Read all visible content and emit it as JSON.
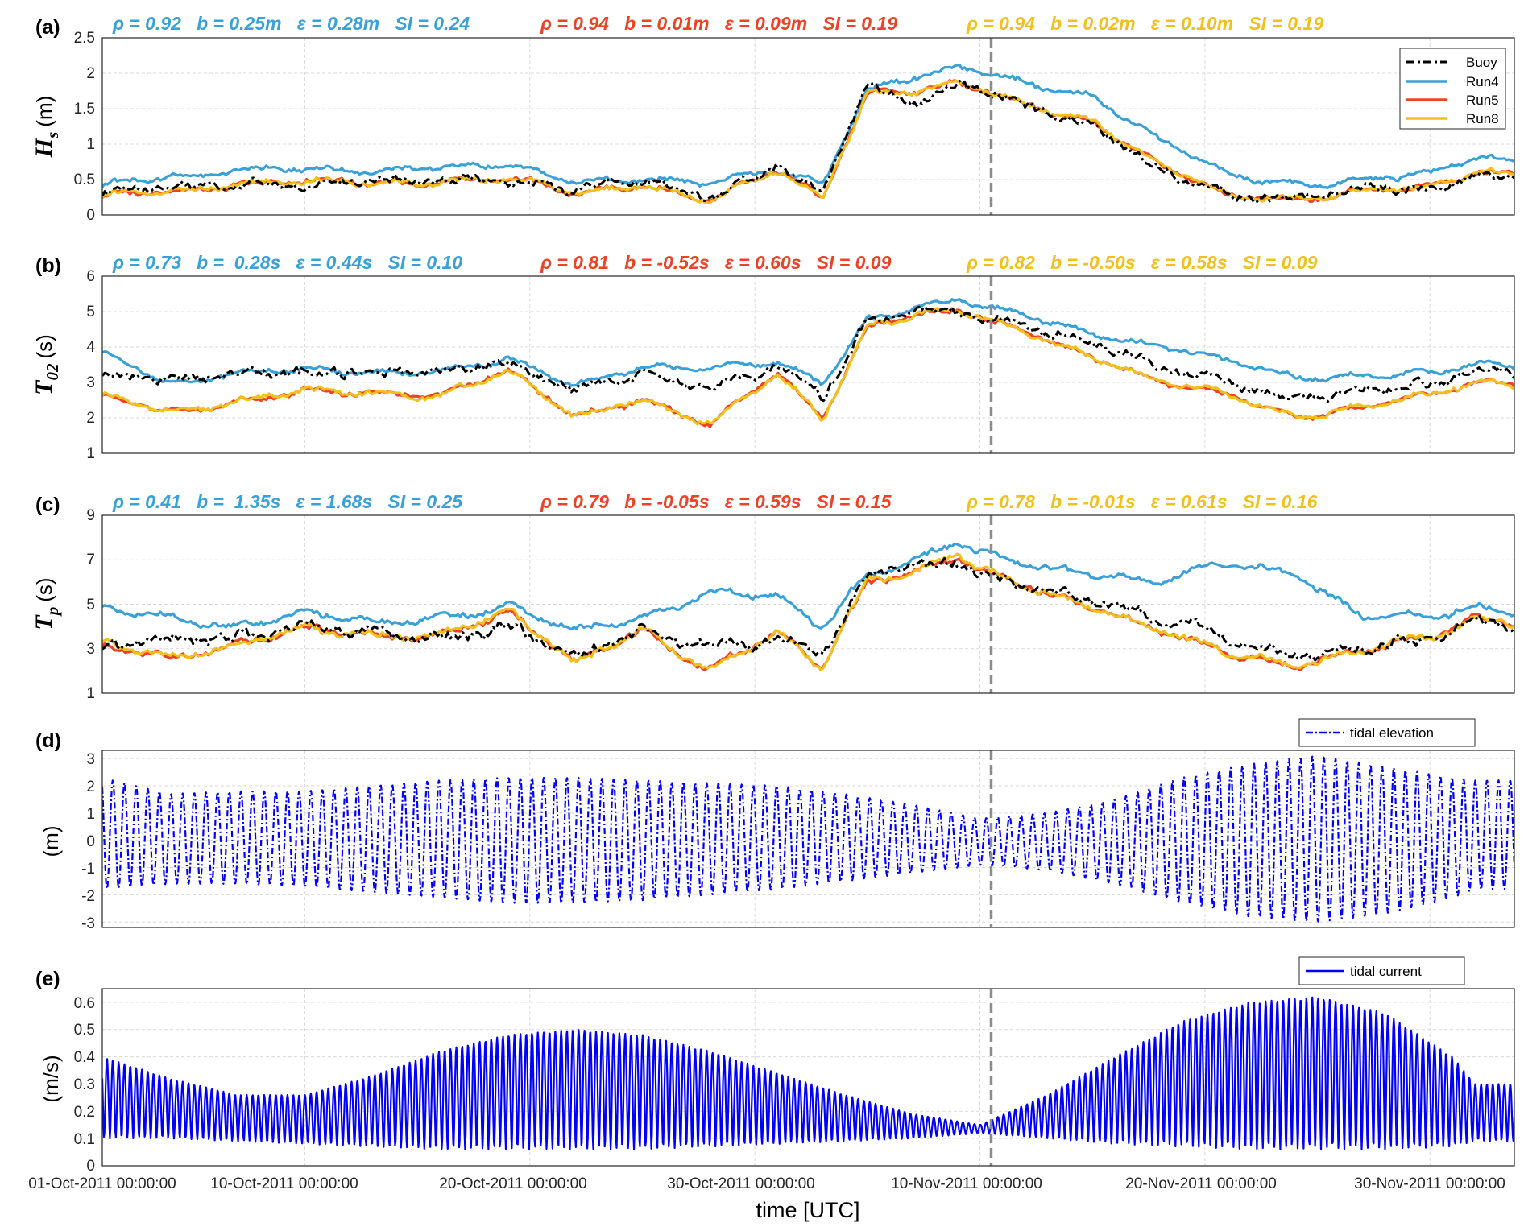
{
  "colors": {
    "buoy": "#000000",
    "run4": "#3AA0D8",
    "run5": "#EE4226",
    "run8": "#F2C01E",
    "tide": "#0000FF",
    "grid": "#D9D9D9",
    "vline": "#8C8C8C"
  },
  "x_axis": {
    "label": "time [UTC]",
    "tick_labels": [
      "01-Oct-2011 00:00:00",
      "10-Oct-2011 00:00:00",
      "20-Oct-2011 00:00:00",
      "30-Oct-2011 00:00:00",
      "10-Nov-2011 00:00:00",
      "20-Nov-2011 00:00:00",
      "30-Nov-2011 00:00:00"
    ]
  },
  "legend_main": {
    "buoy": "Buoy",
    "run4": "Run4",
    "run5": "Run5",
    "run8": "Run8"
  },
  "panels": {
    "a": {
      "tag": "(a)",
      "ylabel_main": "H",
      "ylabel_sub": "s",
      "ylabel_unit": "(m)",
      "yticks": [
        "0",
        "0.5",
        "1",
        "1.5",
        "2",
        "2.5"
      ],
      "stats_run4": "ρ = 0.92   b = 0.25m   ε = 0.28m   SI = 0.24",
      "stats_run5": "ρ = 0.94   b = 0.01m   ε = 0.09m   SI = 0.19",
      "stats_run8": "ρ = 0.94   b = 0.02m   ε = 0.10m   SI = 0.19"
    },
    "b": {
      "tag": "(b)",
      "ylabel_main": "T",
      "ylabel_sub": "02",
      "ylabel_unit": "(s)",
      "yticks": [
        "1",
        "2",
        "3",
        "4",
        "5",
        "6"
      ],
      "stats_run4": "ρ = 0.73   b =  0.28s   ε = 0.44s   SI = 0.10",
      "stats_run5": "ρ = 0.81   b = -0.52s   ε = 0.60s   SI = 0.09",
      "stats_run8": "ρ = 0.82   b = -0.50s   ε = 0.58s   SI = 0.09"
    },
    "c": {
      "tag": "(c)",
      "ylabel_main": "T",
      "ylabel_sub": "p",
      "ylabel_unit": "(s)",
      "yticks": [
        "1",
        "3",
        "5",
        "7",
        "9"
      ],
      "stats_run4": "ρ = 0.41   b =  1.35s   ε = 1.68s   SI = 0.25",
      "stats_run5": "ρ = 0.79   b = -0.05s   ε = 0.59s   SI = 0.15",
      "stats_run8": "ρ = 0.78   b = -0.01s   ε = 0.61s   SI = 0.16"
    },
    "d": {
      "tag": "(d)",
      "ylabel_unit": "(m)",
      "legend": "tidal elevation",
      "yticks": [
        "-3",
        "-2",
        "-1",
        "0",
        "1",
        "2",
        "3"
      ]
    },
    "e": {
      "tag": "(e)",
      "ylabel_unit": "(m/s)",
      "legend": "tidal current",
      "yticks": [
        "0",
        "0.1",
        "0.2",
        "0.3",
        "0.4",
        "0.5",
        "0.6"
      ]
    }
  },
  "chart_data": [
    {
      "type": "line",
      "panel": "a",
      "ylim": [
        0,
        2.5
      ],
      "x": [
        "2011-10-01",
        "2011-10-04",
        "2011-10-07",
        "2011-10-10",
        "2011-10-13",
        "2011-10-16",
        "2011-10-19",
        "2011-10-22",
        "2011-10-25",
        "2011-10-28",
        "2011-10-31",
        "2011-11-02",
        "2011-11-04",
        "2011-11-06",
        "2011-11-08",
        "2011-11-09",
        "2011-11-11",
        "2011-11-14",
        "2011-11-17",
        "2011-11-20",
        "2011-11-23",
        "2011-11-26",
        "2011-11-29",
        "2011-12-01"
      ],
      "series": [
        {
          "name": "Buoy",
          "values": [
            0.3,
            0.4,
            0.45,
            0.4,
            0.5,
            0.5,
            0.45,
            0.35,
            0.55,
            0.2,
            0.7,
            0.3,
            1.9,
            1.55,
            1.8,
            1.75,
            1.55,
            1.3,
            0.6,
            0.25,
            0.25,
            0.4,
            0.3,
            0.55
          ]
        },
        {
          "name": "Run4",
          "values": [
            0.4,
            0.55,
            0.65,
            0.62,
            0.62,
            0.7,
            0.7,
            0.45,
            0.55,
            0.45,
            0.6,
            0.45,
            1.8,
            1.95,
            2.05,
            2.0,
            1.85,
            1.7,
            1.05,
            0.55,
            0.45,
            0.5,
            0.55,
            0.8
          ]
        },
        {
          "name": "Run5",
          "values": [
            0.25,
            0.35,
            0.45,
            0.45,
            0.45,
            0.5,
            0.5,
            0.3,
            0.45,
            0.2,
            0.6,
            0.25,
            1.75,
            1.75,
            1.85,
            1.75,
            1.55,
            1.35,
            0.7,
            0.25,
            0.25,
            0.35,
            0.35,
            0.6
          ]
        },
        {
          "name": "Run8",
          "values": [
            0.25,
            0.35,
            0.45,
            0.45,
            0.45,
            0.5,
            0.5,
            0.3,
            0.45,
            0.2,
            0.6,
            0.25,
            1.75,
            1.75,
            1.85,
            1.75,
            1.55,
            1.35,
            0.7,
            0.25,
            0.25,
            0.35,
            0.35,
            0.6
          ]
        }
      ]
    },
    {
      "type": "line",
      "panel": "b",
      "ylim": [
        1,
        6
      ],
      "x": [
        "2011-10-01",
        "2011-10-04",
        "2011-10-07",
        "2011-10-10",
        "2011-10-13",
        "2011-10-16",
        "2011-10-19",
        "2011-10-22",
        "2011-10-25",
        "2011-10-28",
        "2011-10-31",
        "2011-11-02",
        "2011-11-04",
        "2011-11-06",
        "2011-11-08",
        "2011-11-09",
        "2011-11-11",
        "2011-11-14",
        "2011-11-17",
        "2011-11-20",
        "2011-11-23",
        "2011-11-26",
        "2011-11-29",
        "2011-12-01"
      ],
      "series": [
        {
          "name": "Buoy",
          "values": [
            3.2,
            3.1,
            3.3,
            3.2,
            3.3,
            3.4,
            3.5,
            2.8,
            3.3,
            2.8,
            3.4,
            2.6,
            4.8,
            5.0,
            5.0,
            4.8,
            4.6,
            4.2,
            3.4,
            3.0,
            2.6,
            2.8,
            2.9,
            3.3
          ]
        },
        {
          "name": "Run4",
          "values": [
            3.8,
            3.0,
            3.3,
            3.3,
            3.3,
            3.4,
            3.6,
            2.9,
            3.5,
            3.4,
            3.5,
            3.0,
            4.8,
            5.1,
            5.3,
            5.1,
            4.9,
            4.4,
            4.0,
            3.6,
            3.2,
            3.2,
            3.2,
            3.5
          ]
        },
        {
          "name": "Run5",
          "values": [
            2.6,
            2.2,
            2.5,
            2.7,
            2.7,
            2.7,
            3.3,
            2.0,
            2.6,
            1.8,
            3.2,
            2.0,
            4.6,
            4.9,
            5.0,
            4.8,
            4.4,
            3.8,
            3.0,
            2.6,
            2.1,
            2.3,
            2.6,
            3.0
          ]
        },
        {
          "name": "Run8",
          "values": [
            2.6,
            2.2,
            2.5,
            2.7,
            2.7,
            2.7,
            3.3,
            2.0,
            2.6,
            1.8,
            3.2,
            2.0,
            4.6,
            4.9,
            5.0,
            4.8,
            4.4,
            3.8,
            3.0,
            2.6,
            2.1,
            2.3,
            2.6,
            3.0
          ]
        }
      ]
    },
    {
      "type": "line",
      "panel": "c",
      "ylim": [
        1,
        9
      ],
      "x": [
        "2011-10-01",
        "2011-10-04",
        "2011-10-07",
        "2011-10-10",
        "2011-10-13",
        "2011-10-16",
        "2011-10-19",
        "2011-10-22",
        "2011-10-25",
        "2011-10-28",
        "2011-10-31",
        "2011-11-02",
        "2011-11-04",
        "2011-11-06",
        "2011-11-08",
        "2011-11-09",
        "2011-11-11",
        "2011-11-14",
        "2011-11-17",
        "2011-11-20",
        "2011-11-23",
        "2011-11-26",
        "2011-11-29",
        "2011-12-01"
      ],
      "series": [
        {
          "name": "Buoy",
          "values": [
            3.0,
            3.5,
            3.6,
            3.8,
            3.7,
            3.6,
            3.9,
            2.5,
            4.0,
            3.0,
            3.3,
            2.8,
            6.5,
            6.7,
            6.8,
            6.2,
            5.8,
            5.4,
            4.3,
            3.5,
            2.8,
            3.1,
            3.2,
            4.2
          ]
        },
        {
          "name": "Run4",
          "values": [
            4.8,
            4.5,
            4.0,
            4.5,
            4.2,
            4.5,
            4.8,
            3.8,
            4.5,
            5.5,
            5.2,
            4.0,
            6.5,
            7.0,
            7.8,
            7.2,
            6.8,
            6.5,
            6.0,
            6.8,
            6.5,
            4.5,
            4.3,
            4.8
          ]
        },
        {
          "name": "Run5",
          "values": [
            3.0,
            2.7,
            3.2,
            3.8,
            3.6,
            3.7,
            4.6,
            2.3,
            4.0,
            2.0,
            3.6,
            2.2,
            6.2,
            6.4,
            7.1,
            6.4,
            5.8,
            5.0,
            3.8,
            2.7,
            2.3,
            3.0,
            3.4,
            4.3
          ]
        },
        {
          "name": "Run8",
          "values": [
            3.2,
            2.7,
            3.2,
            3.8,
            3.6,
            3.7,
            4.6,
            2.3,
            4.0,
            2.0,
            3.6,
            2.2,
            6.2,
            6.4,
            7.3,
            6.4,
            5.8,
            5.0,
            3.8,
            2.7,
            2.3,
            3.0,
            3.4,
            4.3
          ]
        }
      ]
    },
    {
      "type": "line",
      "panel": "d",
      "ylim": [
        -3.2,
        3.3
      ],
      "envelope": {
        "x": [
          "2011-10-01",
          "2011-10-04",
          "2011-10-07",
          "2011-10-10",
          "2011-10-13",
          "2011-10-16",
          "2011-10-19",
          "2011-10-22",
          "2011-10-25",
          "2011-10-28",
          "2011-10-31",
          "2011-11-03",
          "2011-11-06",
          "2011-11-09",
          "2011-11-12",
          "2011-11-15",
          "2011-11-18",
          "2011-11-21",
          "2011-11-24",
          "2011-11-27",
          "2011-11-30",
          "2011-12-01"
        ],
        "high": [
          2.3,
          1.7,
          1.8,
          1.8,
          2.0,
          2.2,
          2.3,
          2.3,
          2.2,
          2.1,
          2.0,
          1.7,
          1.3,
          0.8,
          1.0,
          1.5,
          2.3,
          2.8,
          3.1,
          2.7,
          2.3,
          2.2
        ],
        "low": [
          -1.8,
          -1.6,
          -1.6,
          -1.7,
          -1.9,
          -2.1,
          -2.3,
          -2.3,
          -2.2,
          -2.0,
          -1.8,
          -1.5,
          -1.2,
          -0.9,
          -1.1,
          -1.6,
          -2.3,
          -2.8,
          -3.0,
          -2.7,
          -2.1,
          -1.8
        ]
      },
      "series": [
        {
          "name": "tidal elevation"
        }
      ]
    },
    {
      "type": "line",
      "panel": "e",
      "ylim": [
        0,
        0.65
      ],
      "envelope": {
        "x": [
          "2011-10-01",
          "2011-10-04",
          "2011-10-07",
          "2011-10-10",
          "2011-10-13",
          "2011-10-16",
          "2011-10-19",
          "2011-10-22",
          "2011-10-25",
          "2011-10-28",
          "2011-10-31",
          "2011-11-03",
          "2011-11-06",
          "2011-11-09",
          "2011-11-12",
          "2011-11-15",
          "2011-11-18",
          "2011-11-21",
          "2011-11-24",
          "2011-11-27",
          "2011-11-30",
          "2011-12-01"
        ],
        "high": [
          0.4,
          0.32,
          0.26,
          0.26,
          0.33,
          0.42,
          0.48,
          0.5,
          0.48,
          0.42,
          0.34,
          0.26,
          0.19,
          0.15,
          0.26,
          0.4,
          0.53,
          0.6,
          0.62,
          0.56,
          0.4,
          0.3
        ],
        "low": [
          0.1,
          0.1,
          0.09,
          0.08,
          0.07,
          0.06,
          0.06,
          0.06,
          0.06,
          0.07,
          0.08,
          0.09,
          0.1,
          0.12,
          0.1,
          0.08,
          0.07,
          0.06,
          0.06,
          0.06,
          0.07,
          0.09
        ]
      },
      "series": [
        {
          "name": "tidal current"
        }
      ]
    }
  ]
}
